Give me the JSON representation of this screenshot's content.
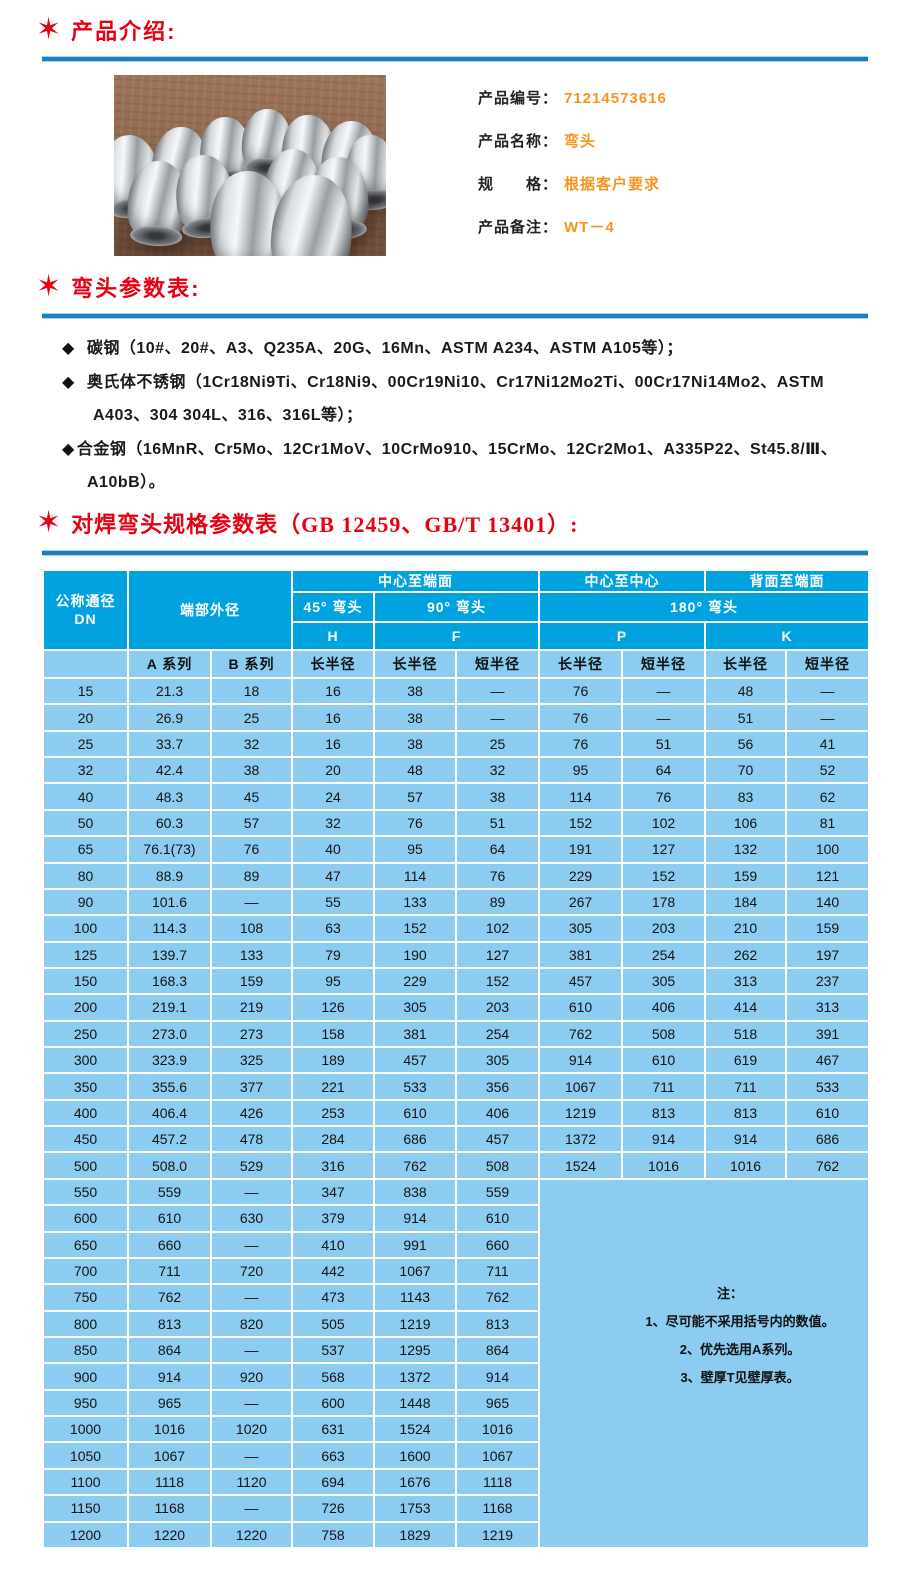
{
  "colors": {
    "accent_red": "#e60012",
    "rule_blue": "#1b7ec3",
    "table_header_blue": "#00a3df",
    "table_cell_blue": "#8bccf0",
    "value_orange": "#f7941d"
  },
  "sections": {
    "intro": {
      "star": "✶",
      "title": "产品介绍:"
    },
    "params": {
      "star": "✶",
      "title": "弯头参数表:"
    },
    "spec": {
      "star": "✶",
      "title": "对焊弯头规格参数表（GB 12459、GB/T 13401）:"
    }
  },
  "product": {
    "fields": [
      {
        "label": "产品编号：",
        "value": "71214573616"
      },
      {
        "label": "产品名称：",
        "value": "弯头"
      },
      {
        "label": "规　　格：",
        "value": "根据客户要求"
      },
      {
        "label": "产品备注：",
        "value": "WT－4"
      }
    ]
  },
  "materials": {
    "lines": [
      {
        "bullet": "◆",
        "cls": "",
        "text": "碳钢（10#、20#、A3、Q235A、20G、16Mn、ASTM A234、ASTM A105等）；"
      },
      {
        "bullet": "◆",
        "cls": "",
        "text": "奥氏体不锈钢（1Cr18Ni9Ti、Cr18Ni9、00Cr19Ni10、Cr17Ni12Mo2Ti、00Cr17Ni14Mo2、ASTM"
      },
      {
        "bullet": "",
        "cls": "cont",
        "text": "A403、304 304L、316、316L等）；"
      },
      {
        "bullet": "◆",
        "cls": "tight",
        "text": "合金钢（16MnR、Cr5Mo、12Cr1MoV、10CrMo910、15CrMo、12Cr2Mo1、A335P22、St45.8/Ⅲ、"
      },
      {
        "bullet": "",
        "cls": "cont2",
        "text": "A10bB）。"
      }
    ]
  },
  "spec_table": {
    "headers": {
      "dn_line1": "公称通径",
      "dn_line2": "DN",
      "end_od": "端部外径",
      "center_to_face": "中心至端面",
      "center_to_center": "中心至中心",
      "back_to_face": "背面至端面",
      "elbow_45": "45° 弯头",
      "elbow_90": "90° 弯头",
      "elbow_180": "180° 弯头",
      "h": "H",
      "f": "F",
      "p": "P",
      "k": "K"
    },
    "sub_headers": [
      "",
      "A 系列",
      "B 系列",
      "长半径",
      "长半径",
      "短半径",
      "长半径",
      "短半径",
      "长半径",
      "短半径"
    ],
    "rows": [
      [
        "15",
        "21.3",
        "18",
        "16",
        "38",
        "—",
        "76",
        "—",
        "48",
        "—"
      ],
      [
        "20",
        "26.9",
        "25",
        "16",
        "38",
        "—",
        "76",
        "—",
        "51",
        "—"
      ],
      [
        "25",
        "33.7",
        "32",
        "16",
        "38",
        "25",
        "76",
        "51",
        "56",
        "41"
      ],
      [
        "32",
        "42.4",
        "38",
        "20",
        "48",
        "32",
        "95",
        "64",
        "70",
        "52"
      ],
      [
        "40",
        "48.3",
        "45",
        "24",
        "57",
        "38",
        "114",
        "76",
        "83",
        "62"
      ],
      [
        "50",
        "60.3",
        "57",
        "32",
        "76",
        "51",
        "152",
        "102",
        "106",
        "81"
      ],
      [
        "65",
        "76.1(73)",
        "76",
        "40",
        "95",
        "64",
        "191",
        "127",
        "132",
        "100"
      ],
      [
        "80",
        "88.9",
        "89",
        "47",
        "114",
        "76",
        "229",
        "152",
        "159",
        "121"
      ],
      [
        "90",
        "101.6",
        "—",
        "55",
        "133",
        "89",
        "267",
        "178",
        "184",
        "140"
      ],
      [
        "100",
        "114.3",
        "108",
        "63",
        "152",
        "102",
        "305",
        "203",
        "210",
        "159"
      ],
      [
        "125",
        "139.7",
        "133",
        "79",
        "190",
        "127",
        "381",
        "254",
        "262",
        "197"
      ],
      [
        "150",
        "168.3",
        "159",
        "95",
        "229",
        "152",
        "457",
        "305",
        "313",
        "237"
      ],
      [
        "200",
        "219.1",
        "219",
        "126",
        "305",
        "203",
        "610",
        "406",
        "414",
        "313"
      ],
      [
        "250",
        "273.0",
        "273",
        "158",
        "381",
        "254",
        "762",
        "508",
        "518",
        "391"
      ],
      [
        "300",
        "323.9",
        "325",
        "189",
        "457",
        "305",
        "914",
        "610",
        "619",
        "467"
      ],
      [
        "350",
        "355.6",
        "377",
        "221",
        "533",
        "356",
        "1067",
        "711",
        "711",
        "533"
      ],
      [
        "400",
        "406.4",
        "426",
        "253",
        "610",
        "406",
        "1219",
        "813",
        "813",
        "610"
      ],
      [
        "450",
        "457.2",
        "478",
        "284",
        "686",
        "457",
        "1372",
        "914",
        "914",
        "686"
      ],
      [
        "500",
        "508.0",
        "529",
        "316",
        "762",
        "508",
        "1524",
        "1016",
        "1016",
        "762"
      ],
      [
        "550",
        "559",
        "—",
        "347",
        "838",
        "559"
      ],
      [
        "600",
        "610",
        "630",
        "379",
        "914",
        "610"
      ],
      [
        "650",
        "660",
        "—",
        "410",
        "991",
        "660"
      ],
      [
        "700",
        "711",
        "720",
        "442",
        "1067",
        "711"
      ],
      [
        "750",
        "762",
        "—",
        "473",
        "1143",
        "762"
      ],
      [
        "800",
        "813",
        "820",
        "505",
        "1219",
        "813"
      ],
      [
        "850",
        "864",
        "—",
        "537",
        "1295",
        "864"
      ],
      [
        "900",
        "914",
        "920",
        "568",
        "1372",
        "914"
      ],
      [
        "950",
        "965",
        "—",
        "600",
        "1448",
        "965"
      ],
      [
        "1000",
        "1016",
        "1020",
        "631",
        "1524",
        "1016"
      ],
      [
        "1050",
        "1067",
        "—",
        "663",
        "1600",
        "1067"
      ],
      [
        "1100",
        "1118",
        "1120",
        "694",
        "1676",
        "1118"
      ],
      [
        "1150",
        "1168",
        "—",
        "726",
        "1753",
        "1168"
      ],
      [
        "1200",
        "1220",
        "1220",
        "758",
        "1829",
        "1219"
      ]
    ],
    "note": {
      "title": "注：",
      "items": [
        "1、尽可能不采用括号内的数值。",
        "2、优先选用A系列。",
        "3、壁厚T见壁厚表。"
      ]
    }
  }
}
